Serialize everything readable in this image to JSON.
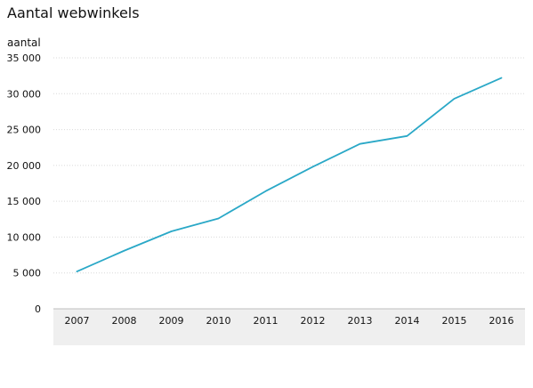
{
  "chart_data": {
    "type": "line",
    "title": "Aantal webwinkels",
    "ylabel": "aantal",
    "xlabel": "",
    "x": [
      "2007",
      "2008",
      "2009",
      "2010",
      "2011",
      "2012",
      "2013",
      "2014",
      "2015",
      "2016"
    ],
    "series": [
      {
        "name": "",
        "values": [
          5200,
          8100,
          10800,
          12600,
          16400,
          19800,
          23000,
          24100,
          29300,
          32200
        ],
        "color": "#2aa8c7"
      }
    ],
    "ylim": [
      0,
      35000
    ],
    "yticks": [
      0,
      5000,
      10000,
      15000,
      20000,
      25000,
      30000,
      35000
    ],
    "ytick_labels": [
      "0",
      "5 000",
      "10 000",
      "15 000",
      "20 000",
      "25 000",
      "30 000",
      "35 000"
    ],
    "grid": true,
    "colors": {
      "line": "#2aa8c7",
      "grid": "#d9d9d9",
      "axis_band": "#efefef",
      "axis_line": "#bfbfbf"
    }
  }
}
